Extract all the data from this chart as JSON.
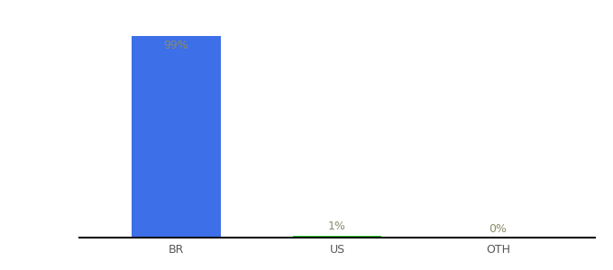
{
  "categories": [
    "BR",
    "US",
    "OTH"
  ],
  "values": [
    99,
    1,
    0
  ],
  "bar_colors": [
    "#3d6fe8",
    "#2ecc2e",
    "#3d6fe8"
  ],
  "labels": [
    "99%",
    "1%",
    "0%"
  ],
  "label_color": "#8a8a6a",
  "background_color": "#ffffff",
  "ylim": [
    0,
    110
  ],
  "xlabel_fontsize": 9,
  "label_fontsize": 9,
  "bar_width": 0.55,
  "axis_line_color": "#111111",
  "tick_color": "#555555"
}
